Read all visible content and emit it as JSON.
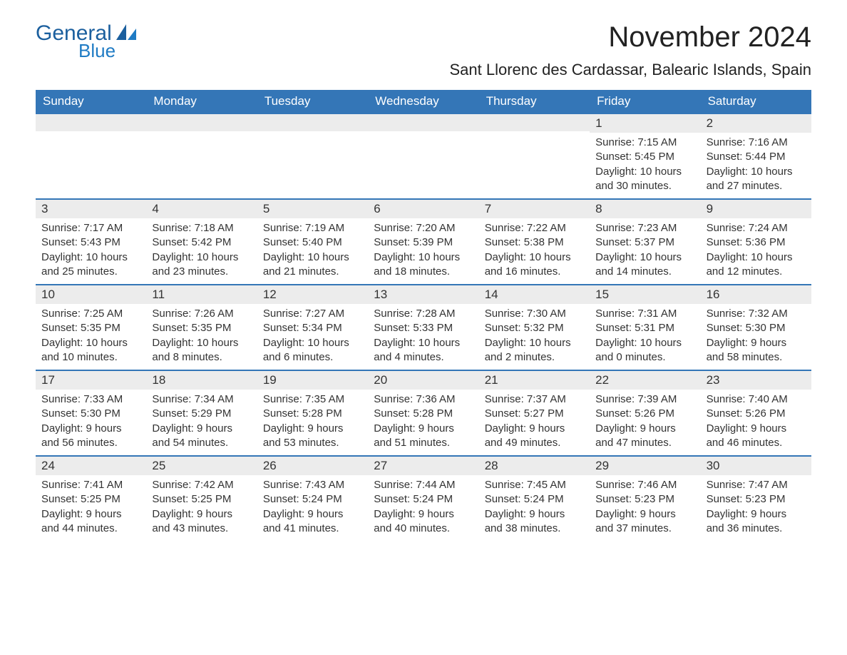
{
  "brand": {
    "general": "General",
    "blue": "Blue",
    "general_color": "#1b5f9e",
    "blue_color": "#1f7bc4",
    "sail_color": "#1f7bc4"
  },
  "header": {
    "month_title": "November 2024",
    "location": "Sant Llorenc des Cardassar, Balearic Islands, Spain"
  },
  "daynames": [
    "Sunday",
    "Monday",
    "Tuesday",
    "Wednesday",
    "Thursday",
    "Friday",
    "Saturday"
  ],
  "colors": {
    "header_bg": "#3476b7",
    "header_text": "#ffffff",
    "daynum_bg": "#ececec",
    "row_border": "#3476b7",
    "text": "#333333",
    "background": "#ffffff"
  },
  "typography": {
    "month_title_fontsize": 40,
    "location_fontsize": 22,
    "dayname_fontsize": 17,
    "daynum_fontsize": 17,
    "cell_fontsize": 15
  },
  "calendar": {
    "type": "table",
    "columns": 7,
    "rows": 5,
    "weeks": [
      [
        null,
        null,
        null,
        null,
        null,
        {
          "day": "1",
          "sunrise": "Sunrise: 7:15 AM",
          "sunset": "Sunset: 5:45 PM",
          "daylight1": "Daylight: 10 hours",
          "daylight2": "and 30 minutes."
        },
        {
          "day": "2",
          "sunrise": "Sunrise: 7:16 AM",
          "sunset": "Sunset: 5:44 PM",
          "daylight1": "Daylight: 10 hours",
          "daylight2": "and 27 minutes."
        }
      ],
      [
        {
          "day": "3",
          "sunrise": "Sunrise: 7:17 AM",
          "sunset": "Sunset: 5:43 PM",
          "daylight1": "Daylight: 10 hours",
          "daylight2": "and 25 minutes."
        },
        {
          "day": "4",
          "sunrise": "Sunrise: 7:18 AM",
          "sunset": "Sunset: 5:42 PM",
          "daylight1": "Daylight: 10 hours",
          "daylight2": "and 23 minutes."
        },
        {
          "day": "5",
          "sunrise": "Sunrise: 7:19 AM",
          "sunset": "Sunset: 5:40 PM",
          "daylight1": "Daylight: 10 hours",
          "daylight2": "and 21 minutes."
        },
        {
          "day": "6",
          "sunrise": "Sunrise: 7:20 AM",
          "sunset": "Sunset: 5:39 PM",
          "daylight1": "Daylight: 10 hours",
          "daylight2": "and 18 minutes."
        },
        {
          "day": "7",
          "sunrise": "Sunrise: 7:22 AM",
          "sunset": "Sunset: 5:38 PM",
          "daylight1": "Daylight: 10 hours",
          "daylight2": "and 16 minutes."
        },
        {
          "day": "8",
          "sunrise": "Sunrise: 7:23 AM",
          "sunset": "Sunset: 5:37 PM",
          "daylight1": "Daylight: 10 hours",
          "daylight2": "and 14 minutes."
        },
        {
          "day": "9",
          "sunrise": "Sunrise: 7:24 AM",
          "sunset": "Sunset: 5:36 PM",
          "daylight1": "Daylight: 10 hours",
          "daylight2": "and 12 minutes."
        }
      ],
      [
        {
          "day": "10",
          "sunrise": "Sunrise: 7:25 AM",
          "sunset": "Sunset: 5:35 PM",
          "daylight1": "Daylight: 10 hours",
          "daylight2": "and 10 minutes."
        },
        {
          "day": "11",
          "sunrise": "Sunrise: 7:26 AM",
          "sunset": "Sunset: 5:35 PM",
          "daylight1": "Daylight: 10 hours",
          "daylight2": "and 8 minutes."
        },
        {
          "day": "12",
          "sunrise": "Sunrise: 7:27 AM",
          "sunset": "Sunset: 5:34 PM",
          "daylight1": "Daylight: 10 hours",
          "daylight2": "and 6 minutes."
        },
        {
          "day": "13",
          "sunrise": "Sunrise: 7:28 AM",
          "sunset": "Sunset: 5:33 PM",
          "daylight1": "Daylight: 10 hours",
          "daylight2": "and 4 minutes."
        },
        {
          "day": "14",
          "sunrise": "Sunrise: 7:30 AM",
          "sunset": "Sunset: 5:32 PM",
          "daylight1": "Daylight: 10 hours",
          "daylight2": "and 2 minutes."
        },
        {
          "day": "15",
          "sunrise": "Sunrise: 7:31 AM",
          "sunset": "Sunset: 5:31 PM",
          "daylight1": "Daylight: 10 hours",
          "daylight2": "and 0 minutes."
        },
        {
          "day": "16",
          "sunrise": "Sunrise: 7:32 AM",
          "sunset": "Sunset: 5:30 PM",
          "daylight1": "Daylight: 9 hours",
          "daylight2": "and 58 minutes."
        }
      ],
      [
        {
          "day": "17",
          "sunrise": "Sunrise: 7:33 AM",
          "sunset": "Sunset: 5:30 PM",
          "daylight1": "Daylight: 9 hours",
          "daylight2": "and 56 minutes."
        },
        {
          "day": "18",
          "sunrise": "Sunrise: 7:34 AM",
          "sunset": "Sunset: 5:29 PM",
          "daylight1": "Daylight: 9 hours",
          "daylight2": "and 54 minutes."
        },
        {
          "day": "19",
          "sunrise": "Sunrise: 7:35 AM",
          "sunset": "Sunset: 5:28 PM",
          "daylight1": "Daylight: 9 hours",
          "daylight2": "and 53 minutes."
        },
        {
          "day": "20",
          "sunrise": "Sunrise: 7:36 AM",
          "sunset": "Sunset: 5:28 PM",
          "daylight1": "Daylight: 9 hours",
          "daylight2": "and 51 minutes."
        },
        {
          "day": "21",
          "sunrise": "Sunrise: 7:37 AM",
          "sunset": "Sunset: 5:27 PM",
          "daylight1": "Daylight: 9 hours",
          "daylight2": "and 49 minutes."
        },
        {
          "day": "22",
          "sunrise": "Sunrise: 7:39 AM",
          "sunset": "Sunset: 5:26 PM",
          "daylight1": "Daylight: 9 hours",
          "daylight2": "and 47 minutes."
        },
        {
          "day": "23",
          "sunrise": "Sunrise: 7:40 AM",
          "sunset": "Sunset: 5:26 PM",
          "daylight1": "Daylight: 9 hours",
          "daylight2": "and 46 minutes."
        }
      ],
      [
        {
          "day": "24",
          "sunrise": "Sunrise: 7:41 AM",
          "sunset": "Sunset: 5:25 PM",
          "daylight1": "Daylight: 9 hours",
          "daylight2": "and 44 minutes."
        },
        {
          "day": "25",
          "sunrise": "Sunrise: 7:42 AM",
          "sunset": "Sunset: 5:25 PM",
          "daylight1": "Daylight: 9 hours",
          "daylight2": "and 43 minutes."
        },
        {
          "day": "26",
          "sunrise": "Sunrise: 7:43 AM",
          "sunset": "Sunset: 5:24 PM",
          "daylight1": "Daylight: 9 hours",
          "daylight2": "and 41 minutes."
        },
        {
          "day": "27",
          "sunrise": "Sunrise: 7:44 AM",
          "sunset": "Sunset: 5:24 PM",
          "daylight1": "Daylight: 9 hours",
          "daylight2": "and 40 minutes."
        },
        {
          "day": "28",
          "sunrise": "Sunrise: 7:45 AM",
          "sunset": "Sunset: 5:24 PM",
          "daylight1": "Daylight: 9 hours",
          "daylight2": "and 38 minutes."
        },
        {
          "day": "29",
          "sunrise": "Sunrise: 7:46 AM",
          "sunset": "Sunset: 5:23 PM",
          "daylight1": "Daylight: 9 hours",
          "daylight2": "and 37 minutes."
        },
        {
          "day": "30",
          "sunrise": "Sunrise: 7:47 AM",
          "sunset": "Sunset: 5:23 PM",
          "daylight1": "Daylight: 9 hours",
          "daylight2": "and 36 minutes."
        }
      ]
    ]
  }
}
